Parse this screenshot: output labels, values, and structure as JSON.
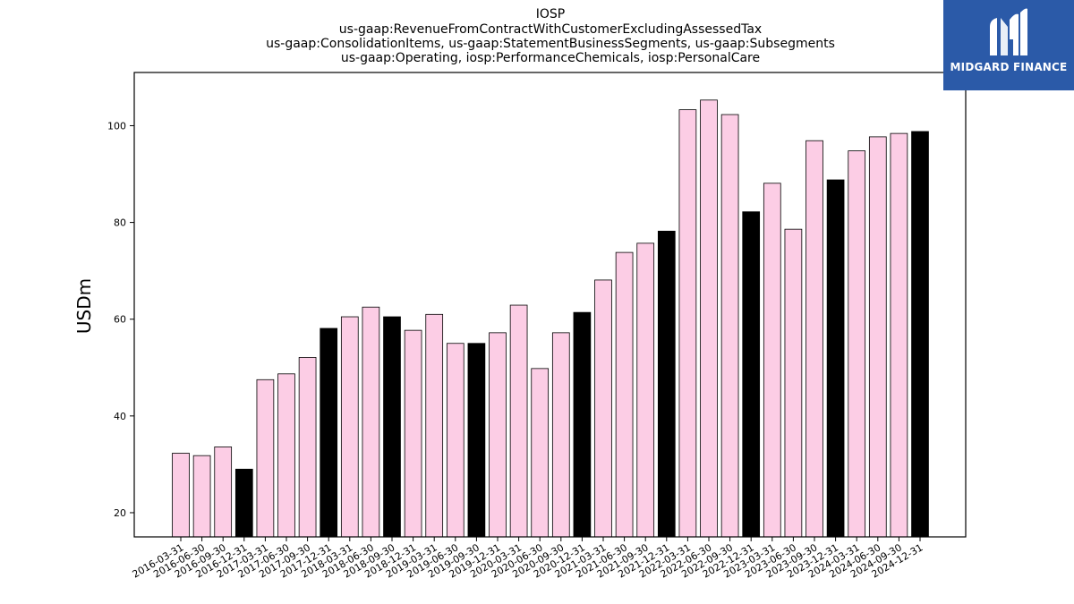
{
  "chart_data": {
    "type": "bar",
    "title_lines": [
      "IOSP",
      "us-gaap:RevenueFromContractWithCustomerExcludingAssessedTax",
      "us-gaap:ConsolidationItems, us-gaap:StatementBusinessSegments, us-gaap:Subsegments",
      "us-gaap:Operating, iosp:PerformanceChemicals, iosp:PersonalCare"
    ],
    "xlabel": "",
    "ylabel": "USDm",
    "ylim": [
      15,
      111
    ],
    "yticks": [
      20,
      40,
      60,
      80,
      100
    ],
    "grid": false,
    "colors": {
      "quarter": "#fccde5",
      "year_end": "#000000",
      "edge": "#000000"
    },
    "categories": [
      "2016-03-31",
      "2016-06-30",
      "2016-09-30",
      "2016-12-31",
      "2017-03-31",
      "2017-06-30",
      "2017-09-30",
      "2017-12-31",
      "2018-03-31",
      "2018-06-30",
      "2018-09-30",
      "2018-12-31",
      "2019-03-31",
      "2019-06-30",
      "2019-09-30",
      "2019-12-31",
      "2020-03-31",
      "2020-06-30",
      "2020-09-30",
      "2020-12-31",
      "2021-03-31",
      "2021-06-30",
      "2021-09-30",
      "2021-12-31",
      "2022-03-31",
      "2022-06-30",
      "2022-09-30",
      "2022-12-31",
      "2023-03-31",
      "2023-06-30",
      "2023-09-30",
      "2023-12-31",
      "2024-03-31",
      "2024-06-30",
      "2024-09-30",
      "2024-12-31"
    ],
    "values": [
      32.3,
      31.8,
      33.6,
      29.0,
      47.5,
      48.7,
      52.1,
      58.1,
      60.5,
      62.5,
      60.5,
      57.7,
      61.0,
      55.0,
      55.0,
      57.2,
      62.9,
      49.8,
      57.2,
      61.4,
      68.1,
      73.8,
      75.7,
      78.2,
      103.3,
      105.3,
      102.3,
      82.2,
      88.1,
      78.6,
      96.9,
      88.8,
      94.8,
      97.7,
      98.4,
      98.8
    ],
    "highlight": [
      false,
      false,
      false,
      true,
      false,
      false,
      false,
      true,
      false,
      false,
      true,
      false,
      false,
      false,
      true,
      false,
      false,
      false,
      false,
      true,
      false,
      false,
      false,
      true,
      false,
      false,
      false,
      true,
      false,
      false,
      false,
      true,
      false,
      false,
      false,
      true
    ]
  },
  "logo": {
    "text": "MIDGARD FINANCE",
    "icon": "midgard-m-logo-icon"
  }
}
